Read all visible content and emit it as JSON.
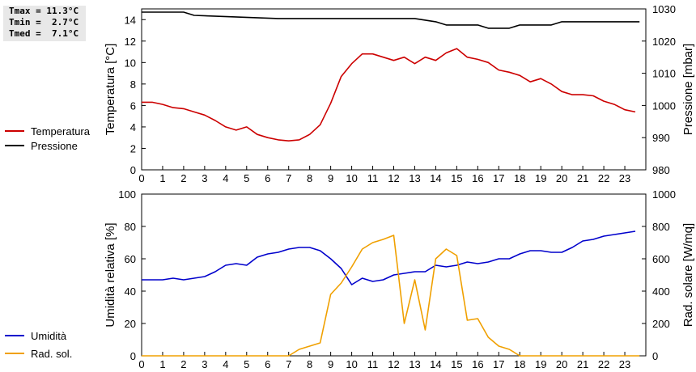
{
  "stats": [
    {
      "text": "Tmax = 11.3°C"
    },
    {
      "text": "Tmin =  2.7°C"
    },
    {
      "text": "Tmed =  7.1°C"
    }
  ],
  "chart_data": [
    {
      "type": "line",
      "ylabel_left": "Temperatura [°C]",
      "ylabel_right": "Pressione [mbar]",
      "ylim_left": [
        0,
        15
      ],
      "ylim_right": [
        980,
        1030
      ],
      "xlim": [
        0,
        24
      ],
      "xticks": [
        0,
        1,
        2,
        3,
        4,
        5,
        6,
        7,
        8,
        9,
        10,
        11,
        12,
        13,
        14,
        15,
        16,
        17,
        18,
        19,
        20,
        21,
        22,
        23
      ],
      "yticks_left": [
        0,
        2,
        4,
        6,
        8,
        10,
        12,
        14
      ],
      "yticks_right": [
        980,
        990,
        1000,
        1010,
        1020,
        1030
      ],
      "grid": false,
      "legend_position": "left",
      "series": [
        {
          "name": "Temperatura",
          "color": "#cc0000",
          "axis": "left",
          "x": [
            0,
            0.5,
            1,
            1.5,
            2,
            2.5,
            3,
            3.5,
            4,
            4.5,
            5,
            5.5,
            6,
            6.5,
            7,
            7.5,
            8,
            8.5,
            9,
            9.5,
            10,
            10.5,
            11,
            11.5,
            12,
            12.5,
            13,
            13.5,
            14,
            14.5,
            15,
            15.5,
            16,
            16.5,
            17,
            17.5,
            18,
            18.5,
            19,
            19.5,
            20,
            20.5,
            21,
            21.5,
            22,
            22.5,
            23,
            23.5
          ],
          "y": [
            6.3,
            6.3,
            6.1,
            5.8,
            5.7,
            5.4,
            5.1,
            4.6,
            4.0,
            3.7,
            4.0,
            3.3,
            3.0,
            2.8,
            2.7,
            2.8,
            3.3,
            4.2,
            6.2,
            8.7,
            9.9,
            10.8,
            10.8,
            10.5,
            10.2,
            10.5,
            9.9,
            10.5,
            10.2,
            10.9,
            11.3,
            10.5,
            10.3,
            10.0,
            9.3,
            9.1,
            8.8,
            8.2,
            8.5,
            8.0,
            7.3,
            7.0,
            7.0,
            6.9,
            6.4,
            6.1,
            5.6,
            5.4
          ]
        },
        {
          "name": "Pressione",
          "color": "#000000",
          "axis": "right",
          "x": [
            0,
            2,
            2.5,
            6.5,
            13,
            14,
            14.5,
            16,
            16.5,
            17.5,
            18,
            19.5,
            20,
            23.7
          ],
          "y": [
            1029,
            1029,
            1028,
            1027,
            1027,
            1026,
            1025,
            1025,
            1024,
            1024,
            1025,
            1025,
            1026,
            1026
          ]
        }
      ]
    },
    {
      "type": "line",
      "ylabel_left": "Umidità relativa [%]",
      "ylabel_right": "Rad. solare [W/mq]",
      "ylim_left": [
        0,
        100
      ],
      "ylim_right": [
        0,
        1000
      ],
      "xlim": [
        0,
        24
      ],
      "xticks": [
        0,
        1,
        2,
        3,
        4,
        5,
        6,
        7,
        8,
        9,
        10,
        11,
        12,
        13,
        14,
        15,
        16,
        17,
        18,
        19,
        20,
        21,
        22,
        23
      ],
      "yticks_left": [
        0,
        20,
        40,
        60,
        80,
        100
      ],
      "yticks_right": [
        0,
        200,
        400,
        600,
        800,
        1000
      ],
      "grid": false,
      "legend_position": "left",
      "series": [
        {
          "name": "Umidità",
          "color": "#0000cc",
          "axis": "left",
          "x": [
            0,
            0.5,
            1,
            1.5,
            2,
            2.5,
            3,
            3.5,
            4,
            4.5,
            5,
            5.5,
            6,
            6.5,
            7,
            7.5,
            8,
            8.5,
            9,
            9.5,
            10,
            10.5,
            11,
            11.5,
            12,
            12.5,
            13,
            13.5,
            14,
            14.5,
            15,
            15.5,
            16,
            16.5,
            17,
            17.5,
            18,
            18.5,
            19,
            19.5,
            20,
            20.5,
            21,
            21.5,
            22,
            22.5,
            23,
            23.5
          ],
          "y": [
            47,
            47,
            47,
            48,
            47,
            48,
            49,
            52,
            56,
            57,
            56,
            61,
            63,
            64,
            66,
            67,
            67,
            65,
            60,
            54,
            44,
            48,
            46,
            47,
            50,
            51,
            52,
            52,
            56,
            55,
            56,
            58,
            57,
            58,
            60,
            60,
            63,
            65,
            65,
            64,
            64,
            67,
            71,
            72,
            74,
            75,
            76,
            77
          ]
        },
        {
          "name": "Rad. sol.",
          "color": "#f0a000",
          "axis": "right",
          "x": [
            0,
            7,
            7.5,
            8,
            8.5,
            9,
            9.5,
            10,
            10.5,
            11,
            11.5,
            12,
            12.5,
            13,
            13.5,
            14,
            14.5,
            15,
            15.5,
            16,
            16.5,
            17,
            17.5,
            18,
            23.7
          ],
          "y": [
            0,
            0,
            40,
            60,
            80,
            380,
            450,
            550,
            660,
            700,
            720,
            745,
            200,
            470,
            160,
            600,
            660,
            620,
            220,
            230,
            115,
            60,
            40,
            0,
            0
          ]
        }
      ]
    }
  ]
}
